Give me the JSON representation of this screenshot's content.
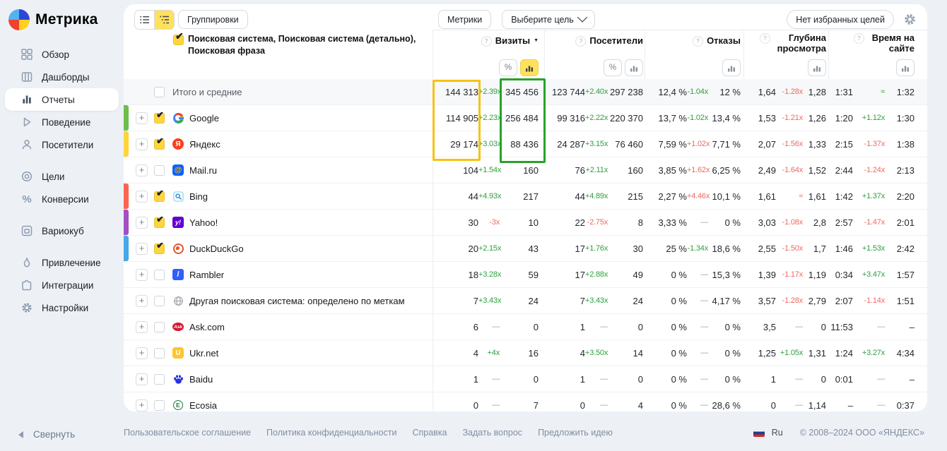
{
  "sidebar": {
    "logo_text": "Метрика",
    "groups": [
      [
        {
          "label": "Обзор",
          "icon": "overview-icon"
        },
        {
          "label": "Дашборды",
          "icon": "dashboards-icon"
        },
        {
          "label": "Отчеты",
          "icon": "reports-icon",
          "active": true
        },
        {
          "label": "Поведение",
          "icon": "behavior-icon"
        },
        {
          "label": "Посетители",
          "icon": "visitors-icon"
        }
      ],
      [
        {
          "label": "Цели",
          "icon": "goals-icon"
        },
        {
          "label": "Конверсии",
          "icon": "conversions-icon"
        }
      ],
      [
        {
          "label": "Вариокуб",
          "icon": "variocube-icon"
        }
      ],
      [
        {
          "label": "Привлечение",
          "icon": "attraction-icon"
        },
        {
          "label": "Интеграции",
          "icon": "integrations-icon"
        },
        {
          "label": "Настройки",
          "icon": "settings-icon"
        }
      ]
    ],
    "collapse_label": "Свернуть"
  },
  "toolbar": {
    "groupings_label": "Группировки",
    "metrics_label": "Метрики",
    "goal_select_label": "Выберите цель",
    "favorite_goals_label": "Нет избранных целей"
  },
  "table": {
    "title": "Поисковая система, Поисковая система (детально), Поисковая фраза",
    "title_checked": true,
    "columns": [
      {
        "label": "Визиты",
        "sorted": true,
        "toggles": [
          "percent",
          "bars"
        ],
        "active_toggle": "bars"
      },
      {
        "label": "Посетители",
        "toggles": [
          "percent",
          "bars"
        ],
        "active_toggle": null
      },
      {
        "label": "Отказы",
        "toggles": [
          "bars"
        ],
        "active_toggle": null
      },
      {
        "label": "Глубина просмотра",
        "toggles": [
          "bars"
        ],
        "active_toggle": null
      },
      {
        "label": "Время на сайте",
        "toggles": [
          "bars"
        ],
        "active_toggle": null
      }
    ],
    "highlights": [
      {
        "name": "visits-current-column",
        "color": "#f6c211"
      },
      {
        "name": "visits-previous-column",
        "color": "#28a228"
      }
    ],
    "rows": [
      {
        "name": "Итого и средние",
        "icon": null,
        "strip": null,
        "checked": false,
        "expandable": false,
        "total": true,
        "metrics": [
          [
            "144 313",
            "+2.39x",
            "up",
            "345 456"
          ],
          [
            "123 744",
            "+2.40x",
            "up",
            "297 238"
          ],
          [
            "12,4 %",
            "-1.04x",
            "up",
            "12 %"
          ],
          [
            "1,64",
            "-1.28x",
            "down",
            "1,28"
          ],
          [
            "1:31",
            "≈",
            "up",
            "1:32"
          ]
        ]
      },
      {
        "name": "Google",
        "icon": "google-favicon",
        "strip": "#6dbe4b",
        "checked": true,
        "expandable": true,
        "metrics": [
          [
            "114 905",
            "+2.23x",
            "up",
            "256 484"
          ],
          [
            "99 316",
            "+2.22x",
            "up",
            "220 370"
          ],
          [
            "13,7 %",
            "-1.02x",
            "up",
            "13,4 %"
          ],
          [
            "1,53",
            "-1.21x",
            "down",
            "1,26"
          ],
          [
            "1:20",
            "+1.12x",
            "up",
            "1:30"
          ]
        ]
      },
      {
        "name": "Яндекс",
        "icon": "yandex-favicon",
        "strip": "#ffd43b",
        "checked": true,
        "expandable": true,
        "metrics": [
          [
            "29 174",
            "+3.03x",
            "up",
            "88 436"
          ],
          [
            "24 287",
            "+3.15x",
            "up",
            "76 460"
          ],
          [
            "7,59 %",
            "+1.02x",
            "down",
            "7,71 %"
          ],
          [
            "2,07",
            "-1.56x",
            "down",
            "1,33"
          ],
          [
            "2:15",
            "-1.37x",
            "down",
            "1:38"
          ]
        ]
      },
      {
        "name": "Mail.ru",
        "icon": "mailru-favicon",
        "strip": null,
        "checked": false,
        "expandable": true,
        "metrics": [
          [
            "104",
            "+1.54x",
            "up",
            "160"
          ],
          [
            "76",
            "+2.11x",
            "up",
            "160"
          ],
          [
            "3,85 %",
            "+1.62x",
            "down",
            "6,25 %"
          ],
          [
            "2,49",
            "-1.64x",
            "down",
            "1,52"
          ],
          [
            "2:44",
            "-1.24x",
            "down",
            "2:13"
          ]
        ]
      },
      {
        "name": "Bing",
        "icon": "bing-favicon",
        "strip": "#ff6352",
        "checked": true,
        "expandable": true,
        "metrics": [
          [
            "44",
            "+4.93x",
            "up",
            "217"
          ],
          [
            "44",
            "+4.89x",
            "up",
            "215"
          ],
          [
            "2,27 %",
            "+4.46x",
            "down",
            "10,1 %"
          ],
          [
            "1,61",
            "≈",
            "down",
            "1,61"
          ],
          [
            "1:42",
            "+1.37x",
            "up",
            "2:20"
          ]
        ]
      },
      {
        "name": "Yahoo!",
        "icon": "yahoo-favicon",
        "strip": "#a34fc4",
        "checked": true,
        "expandable": true,
        "metrics": [
          [
            "30",
            "-3x",
            "down",
            "10"
          ],
          [
            "22",
            "-2.75x",
            "down",
            "8"
          ],
          [
            "3,33 %",
            "—",
            "none",
            "0 %"
          ],
          [
            "3,03",
            "-1.08x",
            "down",
            "2,8"
          ],
          [
            "2:57",
            "-1.47x",
            "down",
            "2:01"
          ]
        ]
      },
      {
        "name": "DuckDuckGo",
        "icon": "duckduckgo-favicon",
        "strip": "#47a7e8",
        "checked": true,
        "expandable": true,
        "metrics": [
          [
            "20",
            "+2.15x",
            "up",
            "43"
          ],
          [
            "17",
            "+1.76x",
            "up",
            "30"
          ],
          [
            "25 %",
            "-1.34x",
            "up",
            "18,6 %"
          ],
          [
            "2,55",
            "-1.50x",
            "down",
            "1,7"
          ],
          [
            "1:46",
            "+1.53x",
            "up",
            "2:42"
          ]
        ]
      },
      {
        "name": "Rambler",
        "icon": "rambler-favicon",
        "strip": null,
        "checked": false,
        "expandable": true,
        "metrics": [
          [
            "18",
            "+3.28x",
            "up",
            "59"
          ],
          [
            "17",
            "+2.88x",
            "up",
            "49"
          ],
          [
            "0 %",
            "—",
            "none",
            "15,3 %"
          ],
          [
            "1,39",
            "-1.17x",
            "down",
            "1,19"
          ],
          [
            "0:34",
            "+3.47x",
            "up",
            "1:57"
          ]
        ]
      },
      {
        "name": "Другая поисковая система: определено по меткам",
        "icon": "globe-favicon",
        "strip": null,
        "checked": false,
        "expandable": true,
        "metrics": [
          [
            "7",
            "+3.43x",
            "up",
            "24"
          ],
          [
            "7",
            "+3.43x",
            "up",
            "24"
          ],
          [
            "0 %",
            "—",
            "none",
            "4,17 %"
          ],
          [
            "3,57",
            "-1.28x",
            "down",
            "2,79"
          ],
          [
            "2:07",
            "-1.14x",
            "down",
            "1:51"
          ]
        ]
      },
      {
        "name": "Ask.com",
        "icon": "ask-favicon",
        "strip": null,
        "checked": false,
        "expandable": true,
        "metrics": [
          [
            "6",
            "—",
            "none",
            "0"
          ],
          [
            "1",
            "—",
            "none",
            "0"
          ],
          [
            "0 %",
            "—",
            "none",
            "0 %"
          ],
          [
            "3,5",
            "—",
            "none",
            "0"
          ],
          [
            "11:53",
            "—",
            "none",
            "–"
          ]
        ]
      },
      {
        "name": "Ukr.net",
        "icon": "ukrnet-favicon",
        "strip": null,
        "checked": false,
        "expandable": true,
        "metrics": [
          [
            "4",
            "+4x",
            "up",
            "16"
          ],
          [
            "4",
            "+3.50x",
            "up",
            "14"
          ],
          [
            "0 %",
            "—",
            "none",
            "0 %"
          ],
          [
            "1,25",
            "+1.05x",
            "up",
            "1,31"
          ],
          [
            "1:24",
            "+3.27x",
            "up",
            "4:34"
          ]
        ]
      },
      {
        "name": "Baidu",
        "icon": "baidu-favicon",
        "strip": null,
        "checked": false,
        "expandable": true,
        "metrics": [
          [
            "1",
            "—",
            "none",
            "0"
          ],
          [
            "1",
            "—",
            "none",
            "0"
          ],
          [
            "0 %",
            "—",
            "none",
            "0 %"
          ],
          [
            "1",
            "—",
            "none",
            "0"
          ],
          [
            "0:01",
            "—",
            "none",
            "–"
          ]
        ]
      },
      {
        "name": "Ecosia",
        "icon": "ecosia-favicon",
        "strip": null,
        "checked": false,
        "expandable": true,
        "metrics": [
          [
            "0",
            "—",
            "none",
            "7"
          ],
          [
            "0",
            "—",
            "none",
            "4"
          ],
          [
            "0 %",
            "—",
            "none",
            "28,6 %"
          ],
          [
            "0",
            "—",
            "none",
            "1,14"
          ],
          [
            "–",
            "—",
            "none",
            "0:37"
          ]
        ]
      }
    ]
  },
  "footer": {
    "links": [
      "Пользовательское соглашение",
      "Политика конфиденциальности",
      "Справка",
      "Задать вопрос",
      "Предложить идею"
    ],
    "lang": "Ru",
    "copyright": "© 2008–2024 ООО «ЯНДЕКС»"
  }
}
